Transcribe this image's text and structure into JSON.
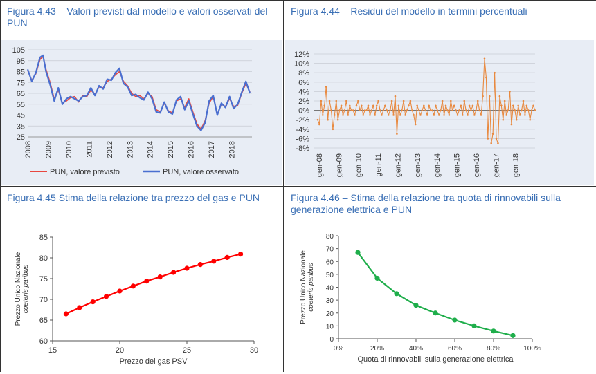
{
  "panels": {
    "p43": {
      "caption": "Figura 4.43 – Valori previsti dal modello e valori osservati del PUN"
    },
    "p44": {
      "caption": "Figura 4.44 – Residui del modello in termini percentuali"
    },
    "p45": {
      "caption": "Figura 4.45 Stima della relazione tra prezzo del gas e PUN"
    },
    "p46": {
      "caption": "Figura 4.46 – Stima della relazione tra quota di rinnovabili sulla generazione elettrica e PUN"
    }
  },
  "chart_data": [
    {
      "id": "fig443",
      "type": "line",
      "x_ticks": [
        "2008",
        "2009",
        "2010",
        "2011",
        "2012",
        "2013",
        "2014",
        "2015",
        "2016",
        "2017",
        "2018"
      ],
      "y_ticks": [
        105,
        95,
        85,
        75,
        65,
        55,
        45,
        35,
        25
      ],
      "ylim": [
        25,
        105
      ],
      "xlim": [
        2008.0,
        2019.0
      ],
      "grid": true,
      "legend_position": "bottom",
      "series": [
        {
          "name": "PUN, valore previsto",
          "color": "#e8473f",
          "x": [
            2008.0,
            2008.2,
            2008.4,
            2008.6,
            2008.75,
            2008.9,
            2009.1,
            2009.3,
            2009.5,
            2009.7,
            2009.9,
            2010.1,
            2010.3,
            2010.5,
            2010.7,
            2010.9,
            2011.1,
            2011.3,
            2011.5,
            2011.7,
            2011.9,
            2012.1,
            2012.3,
            2012.5,
            2012.7,
            2012.9,
            2013.1,
            2013.3,
            2013.5,
            2013.7,
            2013.9,
            2014.1,
            2014.3,
            2014.5,
            2014.7,
            2014.9,
            2015.1,
            2015.3,
            2015.5,
            2015.7,
            2015.9,
            2016.1,
            2016.3,
            2016.5,
            2016.7,
            2016.9,
            2017.1,
            2017.3,
            2017.5,
            2017.7,
            2017.9,
            2018.1,
            2018.3,
            2018.5,
            2018.7,
            2018.9
          ],
          "values": [
            86,
            77,
            83,
            96,
            99,
            87,
            75,
            60,
            68,
            56,
            58,
            61,
            62,
            57,
            63,
            62,
            68,
            64,
            71,
            70,
            76,
            78,
            82,
            85,
            76,
            72,
            65,
            62,
            63,
            60,
            65,
            62,
            50,
            48,
            56,
            49,
            47,
            58,
            60,
            52,
            60,
            48,
            37,
            32,
            40,
            56,
            62,
            46,
            55,
            53,
            60,
            53,
            54,
            65,
            74,
            66
          ]
        },
        {
          "name": "PUN, valore osservato",
          "color": "#4a6fd0",
          "x": [
            2008.0,
            2008.2,
            2008.4,
            2008.6,
            2008.75,
            2008.9,
            2009.1,
            2009.3,
            2009.5,
            2009.7,
            2009.9,
            2010.1,
            2010.3,
            2010.5,
            2010.7,
            2010.9,
            2011.1,
            2011.3,
            2011.5,
            2011.7,
            2011.9,
            2012.1,
            2012.3,
            2012.5,
            2012.7,
            2012.9,
            2013.1,
            2013.3,
            2013.5,
            2013.7,
            2013.9,
            2014.1,
            2014.3,
            2014.5,
            2014.7,
            2014.9,
            2015.1,
            2015.3,
            2015.5,
            2015.7,
            2015.9,
            2016.1,
            2016.3,
            2016.5,
            2016.7,
            2016.9,
            2017.1,
            2017.3,
            2017.5,
            2017.7,
            2017.9,
            2018.1,
            2018.3,
            2018.5,
            2018.7,
            2018.9
          ],
          "values": [
            87,
            76,
            84,
            98,
            100,
            85,
            73,
            58,
            70,
            55,
            60,
            62,
            60,
            58,
            62,
            63,
            70,
            63,
            72,
            69,
            78,
            77,
            84,
            88,
            74,
            71,
            63,
            64,
            61,
            59,
            66,
            60,
            48,
            47,
            57,
            48,
            46,
            59,
            62,
            50,
            58,
            46,
            35,
            31,
            38,
            58,
            63,
            45,
            56,
            52,
            62,
            51,
            55,
            66,
            76,
            65
          ]
        }
      ]
    },
    {
      "id": "fig444",
      "type": "line",
      "x_ticks": [
        "gen-08",
        "gen-09",
        "gen-10",
        "gen-11",
        "gen-12",
        "gen-13",
        "gen-14",
        "gen-15",
        "gen-16",
        "gen-17",
        "gen-18"
      ],
      "y_ticks": [
        "12%",
        "10%",
        "8%",
        "6%",
        "4%",
        "2%",
        "0%",
        "-2%",
        "-4%",
        "-6%",
        "-8%"
      ],
      "ylim": [
        -8,
        12
      ],
      "xlim": [
        0,
        132
      ],
      "grid": true,
      "series": [
        {
          "name": "",
          "color": "#e8893f",
          "values": [
            -2,
            -3,
            2,
            -1,
            1,
            5,
            -2,
            2,
            0,
            -4,
            -1,
            2,
            -2,
            0,
            1,
            -1,
            0,
            2,
            -1,
            1,
            0,
            0,
            -1,
            1,
            2,
            0,
            1,
            -1,
            0,
            0,
            1,
            -1,
            0,
            1,
            -1,
            1,
            2,
            0,
            -1,
            0,
            1,
            0,
            -1,
            0,
            2,
            -1,
            3,
            -5,
            1,
            -1,
            0,
            2,
            -1,
            0,
            1,
            2,
            0,
            -1,
            -3,
            1,
            0,
            -1,
            0,
            1,
            0,
            -1,
            1,
            0,
            0,
            -1,
            1,
            0,
            -1,
            0,
            2,
            -1,
            1,
            0,
            -1,
            2,
            0,
            1,
            0,
            -1,
            0,
            1,
            -1,
            2,
            0,
            -1,
            1,
            0,
            1,
            -1,
            0,
            2,
            0,
            -1,
            3,
            11,
            7,
            -6,
            3,
            -7,
            -5,
            8,
            -6,
            -7,
            3,
            1,
            -2,
            2,
            -1,
            0,
            4,
            -3,
            1,
            0,
            -2,
            1,
            -1,
            0,
            2,
            -1,
            1,
            0,
            -2,
            0,
            1,
            0
          ]
        }
      ]
    },
    {
      "id": "fig445",
      "type": "line",
      "xlabel": "Prezzo del gas PSV",
      "ylabel": "Prezzo Unico Nazionale",
      "ylabel2": "coeteris paribus",
      "x_ticks": [
        15,
        20,
        25,
        30
      ],
      "y_ticks": [
        60,
        65,
        70,
        75,
        80,
        85
      ],
      "xlim": [
        15,
        30
      ],
      "ylim": [
        60,
        85
      ],
      "grid": false,
      "series": [
        {
          "name": "",
          "color": "#ff0000",
          "x": [
            16,
            17,
            18,
            19,
            20,
            21,
            22,
            23,
            24,
            25,
            26,
            27,
            28,
            29
          ],
          "values": [
            66.5,
            68.0,
            69.4,
            70.7,
            72.0,
            73.2,
            74.4,
            75.4,
            76.5,
            77.5,
            78.4,
            79.2,
            80.1,
            80.9
          ]
        }
      ]
    },
    {
      "id": "fig446",
      "type": "line",
      "xlabel": "Quota di rinnovabili sulla generazione elettrica",
      "ylabel": "Prezzo Unico Nazionale",
      "ylabel2": "coeteris paribus",
      "x_ticks": [
        "0%",
        "20%",
        "40%",
        "60%",
        "80%",
        "100%"
      ],
      "y_ticks": [
        0,
        10,
        20,
        30,
        40,
        50,
        60,
        70,
        80
      ],
      "xlim": [
        0,
        100
      ],
      "ylim": [
        0,
        80
      ],
      "grid": false,
      "series": [
        {
          "name": "",
          "color": "#1fae4b",
          "x": [
            10,
            20,
            30,
            40,
            50,
            60,
            70,
            80,
            90
          ],
          "values": [
            67,
            47,
            35,
            26,
            20,
            14.5,
            10,
            6,
            2.5
          ]
        }
      ]
    }
  ]
}
